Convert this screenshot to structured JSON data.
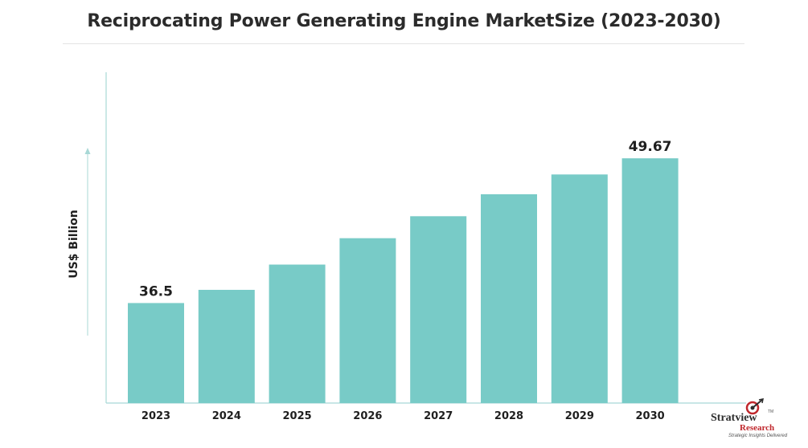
{
  "chart_data": {
    "type": "bar",
    "title": "Reciprocating Power Generating Engine MarketSize (2023-2030)",
    "ylabel": "US$ Billion",
    "xlabel": "",
    "categories": [
      "2023",
      "2024",
      "2025",
      "2026",
      "2027",
      "2028",
      "2029",
      "2030"
    ],
    "values": [
      36.5,
      37.7,
      40.0,
      42.4,
      44.4,
      46.4,
      48.2,
      49.67
    ],
    "data_labels": {
      "2023": "36.5",
      "2030": "49.67"
    },
    "ylim": [
      27.4,
      57.5
    ],
    "grid": false,
    "legend": "none",
    "bar_color": "#78cbc7",
    "axis_color": "#a8d8d6"
  },
  "logo": {
    "main": "Stratview",
    "sub": "Research",
    "tagline": "Strategic Insights Delivered",
    "tm": "TM"
  }
}
